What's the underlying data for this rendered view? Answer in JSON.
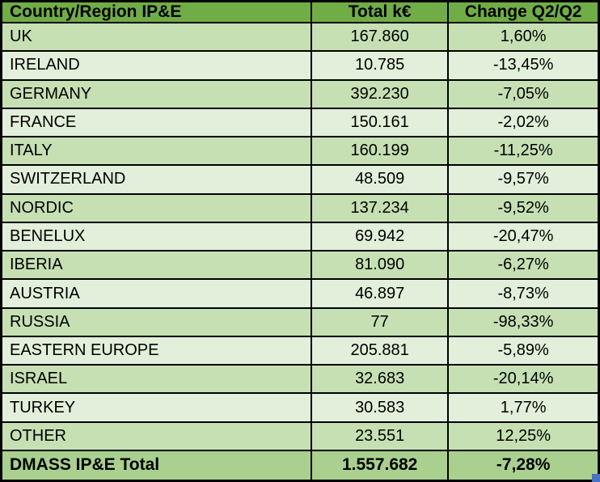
{
  "colors": {
    "header_bg": "#70AD47",
    "row_dark_bg": "#C6E0B4",
    "row_light_bg": "#E2EFDA",
    "total_bg": "#A9D08E",
    "border": "#000000",
    "text": "#000000",
    "selection_handle": "#4472C4"
  },
  "chart_data": {
    "type": "table",
    "title": "",
    "columns": [
      "Country/Region IP&E",
      "Total k€",
      "Change Q2/Q2"
    ],
    "rows": [
      [
        "UK",
        "167.860",
        "1,60%"
      ],
      [
        "IRELAND",
        "10.785",
        "-13,45%"
      ],
      [
        "GERMANY",
        "392.230",
        "-7,05%"
      ],
      [
        "FRANCE",
        "150.161",
        "-2,02%"
      ],
      [
        "ITALY",
        "160.199",
        "-11,25%"
      ],
      [
        "SWITZERLAND",
        "48.509",
        "-9,57%"
      ],
      [
        "NORDIC",
        "137.234",
        "-9,52%"
      ],
      [
        "BENELUX",
        "69.942",
        "-20,47%"
      ],
      [
        "IBERIA",
        "81.090",
        "-6,27%"
      ],
      [
        "AUSTRIA",
        "46.897",
        "-8,73%"
      ],
      [
        "RUSSIA",
        "77",
        "-98,33%"
      ],
      [
        "EASTERN EUROPE",
        "205.881",
        "-5,89%"
      ],
      [
        "ISRAEL",
        "32.683",
        "-20,14%"
      ],
      [
        "TURKEY",
        "30.583",
        "1,77%"
      ],
      [
        "OTHER",
        "23.551",
        "12,25%"
      ]
    ],
    "total_row": [
      "DMASS IP&E Total",
      "1.557.682",
      "-7,28%"
    ]
  }
}
